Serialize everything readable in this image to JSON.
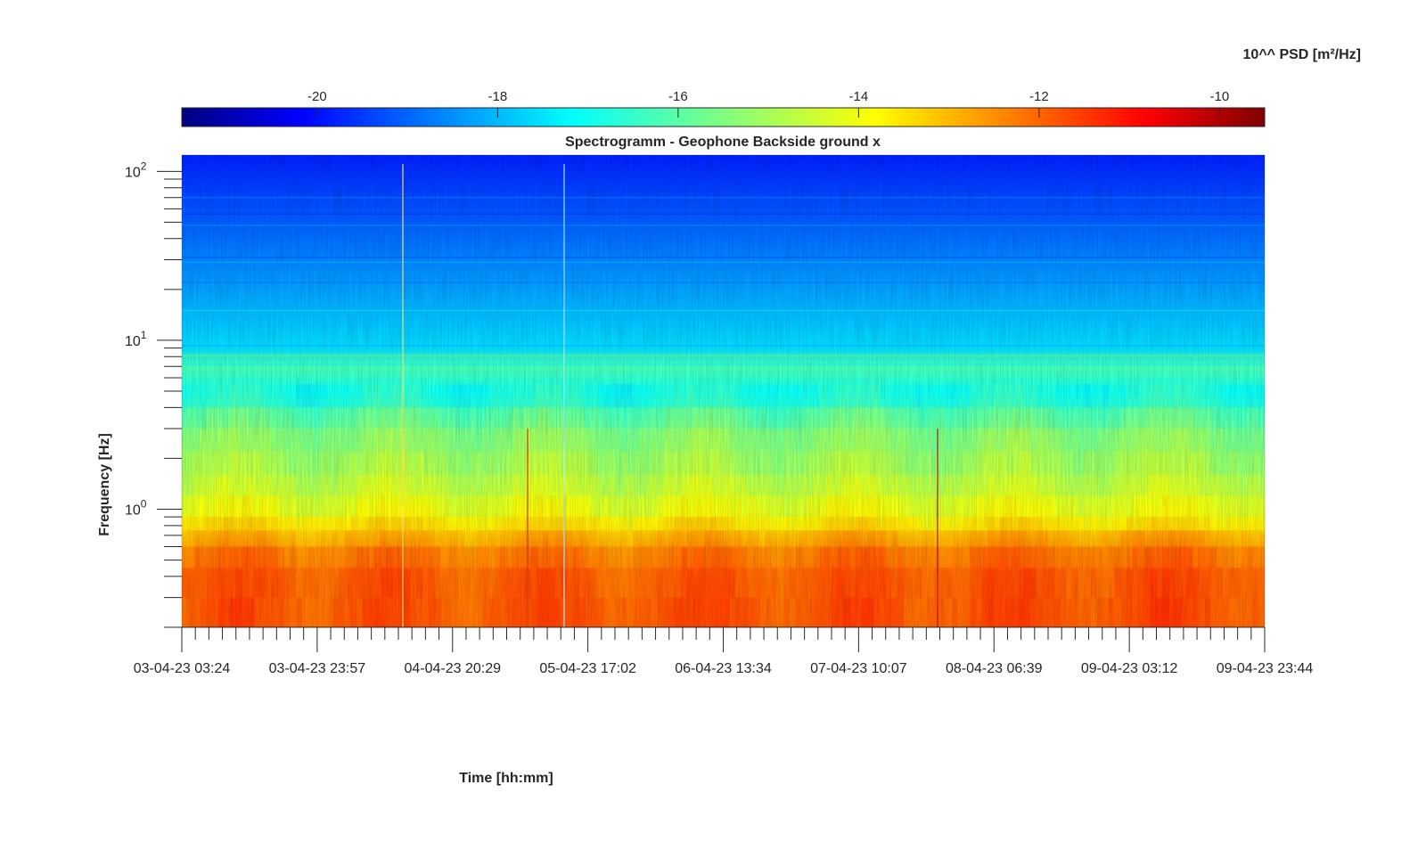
{
  "chart_data": {
    "type": "heatmap",
    "title": "Spectrogramm - Geophone Backside ground x",
    "xlabel": "Time [hh:mm]",
    "ylabel": "Frequency [Hz]",
    "colorbar": {
      "label": "10^^ PSD [m²/Hz]",
      "colormap": "jet",
      "range": [
        -21.5,
        -9.5
      ],
      "ticks": [
        "-20",
        "-18",
        "-16",
        "-14",
        "-12",
        "-10"
      ],
      "tick_values": [
        -20,
        -18,
        -16,
        -14,
        -12,
        -10
      ],
      "position": "top"
    },
    "x_ticks": [
      "03-04-23 03:24",
      "03-04-23 23:57",
      "04-04-23 20:29",
      "05-04-23 17:02",
      "06-04-23 13:34",
      "07-04-23 10:07",
      "08-04-23 06:39",
      "09-04-23 03:12",
      "09-04-23 23:44"
    ],
    "xlim": [
      "03-04-23 03:24",
      "09-04-23 23:44"
    ],
    "y_scale": "log",
    "ylim": [
      0.2,
      125
    ],
    "y_ticks": [
      {
        "base": "10",
        "exp": "0",
        "value": 1
      },
      {
        "base": "10",
        "exp": "1",
        "value": 10
      },
      {
        "base": "10",
        "exp": "2",
        "value": 100
      }
    ],
    "grid": false,
    "psd_profile": [
      {
        "freq_hz": 0.2,
        "log_psd": -12.0
      },
      {
        "freq_hz": 0.4,
        "log_psd": -12.1
      },
      {
        "freq_hz": 0.6,
        "log_psd": -12.6
      },
      {
        "freq_hz": 0.75,
        "log_psd": -13.5
      },
      {
        "freq_hz": 1.0,
        "log_psd": -14.2
      },
      {
        "freq_hz": 1.5,
        "log_psd": -14.8
      },
      {
        "freq_hz": 3.0,
        "log_psd": -15.5
      },
      {
        "freq_hz": 5.0,
        "log_psd": -16.8
      },
      {
        "freq_hz": 7.0,
        "log_psd": -16.1
      },
      {
        "freq_hz": 9.0,
        "log_psd": -17.4
      },
      {
        "freq_hz": 20.0,
        "log_psd": -18.1
      },
      {
        "freq_hz": 50.0,
        "log_psd": -18.9
      },
      {
        "freq_hz": 120.0,
        "log_psd": -19.6
      }
    ]
  }
}
